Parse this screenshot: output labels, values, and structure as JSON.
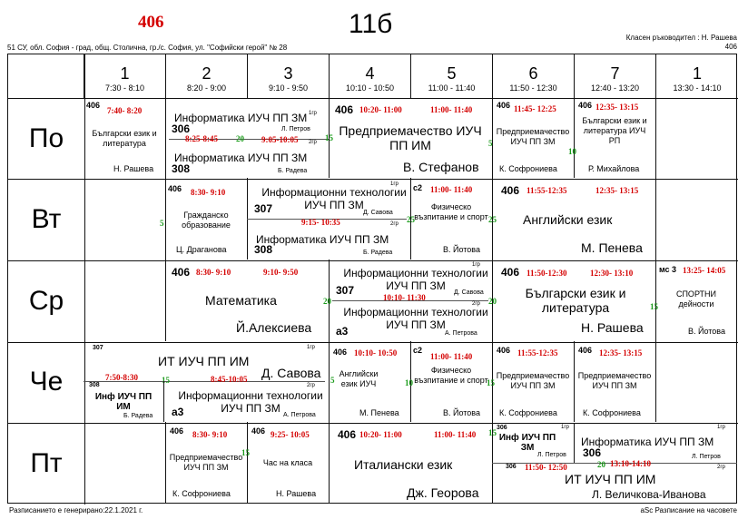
{
  "header": {
    "room": "406",
    "class_title": "11б",
    "class_teacher": "Класен ръководител : Н. Рашева",
    "class_teacher_room": "406",
    "school": "51 СУ, обл. София - град, общ. Столична, гр./с. София, ул. \"Софийски герой\" № 28"
  },
  "periods": [
    {
      "num": "1",
      "time": "7:30 - 8:10"
    },
    {
      "num": "2",
      "time": "8:20 - 9:00"
    },
    {
      "num": "3",
      "time": "9:10 - 9:50"
    },
    {
      "num": "4",
      "time": "10:10 - 10:50"
    },
    {
      "num": "5",
      "time": "11:00 - 11:40"
    },
    {
      "num": "6",
      "time": "11:50 - 12:30"
    },
    {
      "num": "7",
      "time": "12:40 - 13:20"
    },
    {
      "num": "1",
      "time": "13:30 - 14:10"
    }
  ],
  "days": [
    "По",
    "Вт",
    "Ср",
    "Че",
    "Пт"
  ],
  "mon": {
    "c1": {
      "room": "406",
      "time": "7:40- 8:20",
      "subject": "Български език и литература",
      "teacher": "Н. Рашева"
    },
    "c23": {
      "room_a": "306",
      "subject_a": "Информатика ИУЧ ПП ЗМ",
      "teacher_a": "Л. Петров",
      "grp_a": "1гр",
      "time_a": "8:25-8:45",
      "gap": "20",
      "time_b": "9:05-10:05",
      "grp_b": "2гр",
      "gap_b": "15",
      "subject_b": "Информатика ИУЧ ПП ЗМ",
      "room_b": "308",
      "teacher_b": "Б. Радева"
    },
    "c45": {
      "room": "406",
      "time_a": "10:20- 11:00",
      "time_b": "11:00- 11:40",
      "subject": "Предприемачество ИУЧ ПП ИМ",
      "teacher": "В. Стефанов"
    },
    "c6": {
      "room": "406",
      "time": "11:45- 12:25",
      "gap": "5",
      "subject": "Предприемачество ИУЧ ПП ЗМ",
      "teacher": "К. Софрониева"
    },
    "c7": {
      "room": "406",
      "time": "12:35- 13:15",
      "gap": "10",
      "subject": "Български език и литература ИУЧ РП",
      "teacher": "Р. Михайлова"
    }
  },
  "tue": {
    "c2": {
      "room": "406",
      "time": "8:30- 9:10",
      "gap": "5",
      "subject": "Гражданско образование",
      "teacher": "Ц. Драганова"
    },
    "c34": {
      "grp_a": "1гр",
      "room_a": "307",
      "subject_a": "Информационни технологии ИУЧ ПП ЗМ",
      "teacher_a": "Д. Савова",
      "time": "9:15- 10:35",
      "gap": "25",
      "grp_b": "2гр",
      "subject_b": "Информатика ИУЧ ПП ЗМ",
      "room_b": "308",
      "teacher_b": "Б. Радева"
    },
    "c5": {
      "room": "с2",
      "time": "11:00- 11:40",
      "gap": "25",
      "subject": "Физическо възпитание и спорт",
      "teacher": "В. Йотова"
    },
    "c67": {
      "room": "406",
      "time_a": "11:55-12:35",
      "time_b": "12:35- 13:15",
      "subject": "Английски език",
      "teacher": "М. Пенева"
    }
  },
  "wed": {
    "c23": {
      "room": "406",
      "time_a": "8:30- 9:10",
      "time_b": "9:10- 9:50",
      "subject": "Математика",
      "teacher": "Й.Алексиева"
    },
    "c45": {
      "grp_a": "1гр",
      "subject_a": "Информационни технологии ИУЧ ПП ЗМ",
      "room_a": "307",
      "teacher_a": "Д. Савова",
      "time": "10:10- 11:30",
      "gap_a": "20",
      "gap_b": "20",
      "grp_b": "2гр",
      "subject_b": "Информационни технологии ИУЧ ПП ЗМ",
      "room_b": "а3",
      "teacher_b": "А. Петрова"
    },
    "c67": {
      "room": "406",
      "time_a": "11:50-12:30",
      "time_b": "12:30- 13:10",
      "subject": "Български език и литература",
      "teacher": "Н. Рашева"
    },
    "c8": {
      "room": "мс 3",
      "time": "13:25- 14:05",
      "gap": "15",
      "subject": "СПОРТНИ дейности",
      "teacher": "В. Йотова"
    }
  },
  "thu": {
    "c123": {
      "room_a": "307",
      "subject_a": "ИТ ИУЧ ПП ИМ",
      "grp_a": "1гр",
      "teacher_a": "Д. Савова",
      "time_a": "7:50-8:30",
      "gap_a": "15",
      "time_b": "8:45-10:05",
      "gap_b": "5",
      "room_c": "308",
      "subject_c": "Инф ИУЧ ПП ИМ",
      "teacher_c": "Б. Радева",
      "grp_b": "2гр",
      "subject_b": "Информационни технологии ИУЧ ПП ЗМ",
      "room_b": "а3",
      "teacher_b": "А. Петрова"
    },
    "c4": {
      "room": "406",
      "time": "10:10- 10:50",
      "subject": "Английски език ИУЧ",
      "teacher": "М. Пенева"
    },
    "c5": {
      "room": "с2",
      "time": "11:00- 11:40",
      "gap": "10",
      "subject": "Физическо възпитание и спорт",
      "teacher": "В. Йотова"
    },
    "c6": {
      "room": "406",
      "time": "11:55-12:35",
      "gap": "15",
      "subject": "Предприемачество ИУЧ ПП ЗМ",
      "teacher": "К. Софрониева"
    },
    "c7": {
      "room": "406",
      "time": "12:35- 13:15",
      "subject": "Предприемачество ИУЧ ПП ЗМ",
      "teacher": "К. Софрониева"
    }
  },
  "fri": {
    "c2": {
      "room": "406",
      "time": "8:30- 9:10",
      "subject": "Предприемачество ИУЧ ПП ЗМ",
      "teacher": "К. Софрониева"
    },
    "c3": {
      "room": "406",
      "time": "9:25- 10:05",
      "gap": "15",
      "subject": "Час на класа",
      "teacher": "Н. Рашева"
    },
    "c45": {
      "room": "406",
      "time_a": "10:20- 11:00",
      "time_b": "11:00- 11:40",
      "gap": "15",
      "subject": "Италиански език",
      "teacher": "Дж. Георова"
    },
    "c678": {
      "room_a": "306",
      "subject_a": "Инф ИУЧ ПП ЗМ",
      "teacher_a": "Л. Петров",
      "grp_a": "1гр",
      "subject_b": "Информатика ИУЧ ПП ЗМ",
      "grp_b": "1гр",
      "room_b": "306",
      "teacher_b": "Л. Петров",
      "time_b": "13:10-14:10",
      "gap_b": "20",
      "room_c": "306",
      "time_c": "11:50- 12:50",
      "grp_c": "2гр",
      "subject_c": "ИТ ИУЧ ПП ИМ",
      "teacher_c": "Л. Величкова-Иванова"
    }
  },
  "footer": {
    "generated": "Разписанието е генерирано:22.1.2021 г.",
    "software": "aSc Разписание на часовете"
  }
}
